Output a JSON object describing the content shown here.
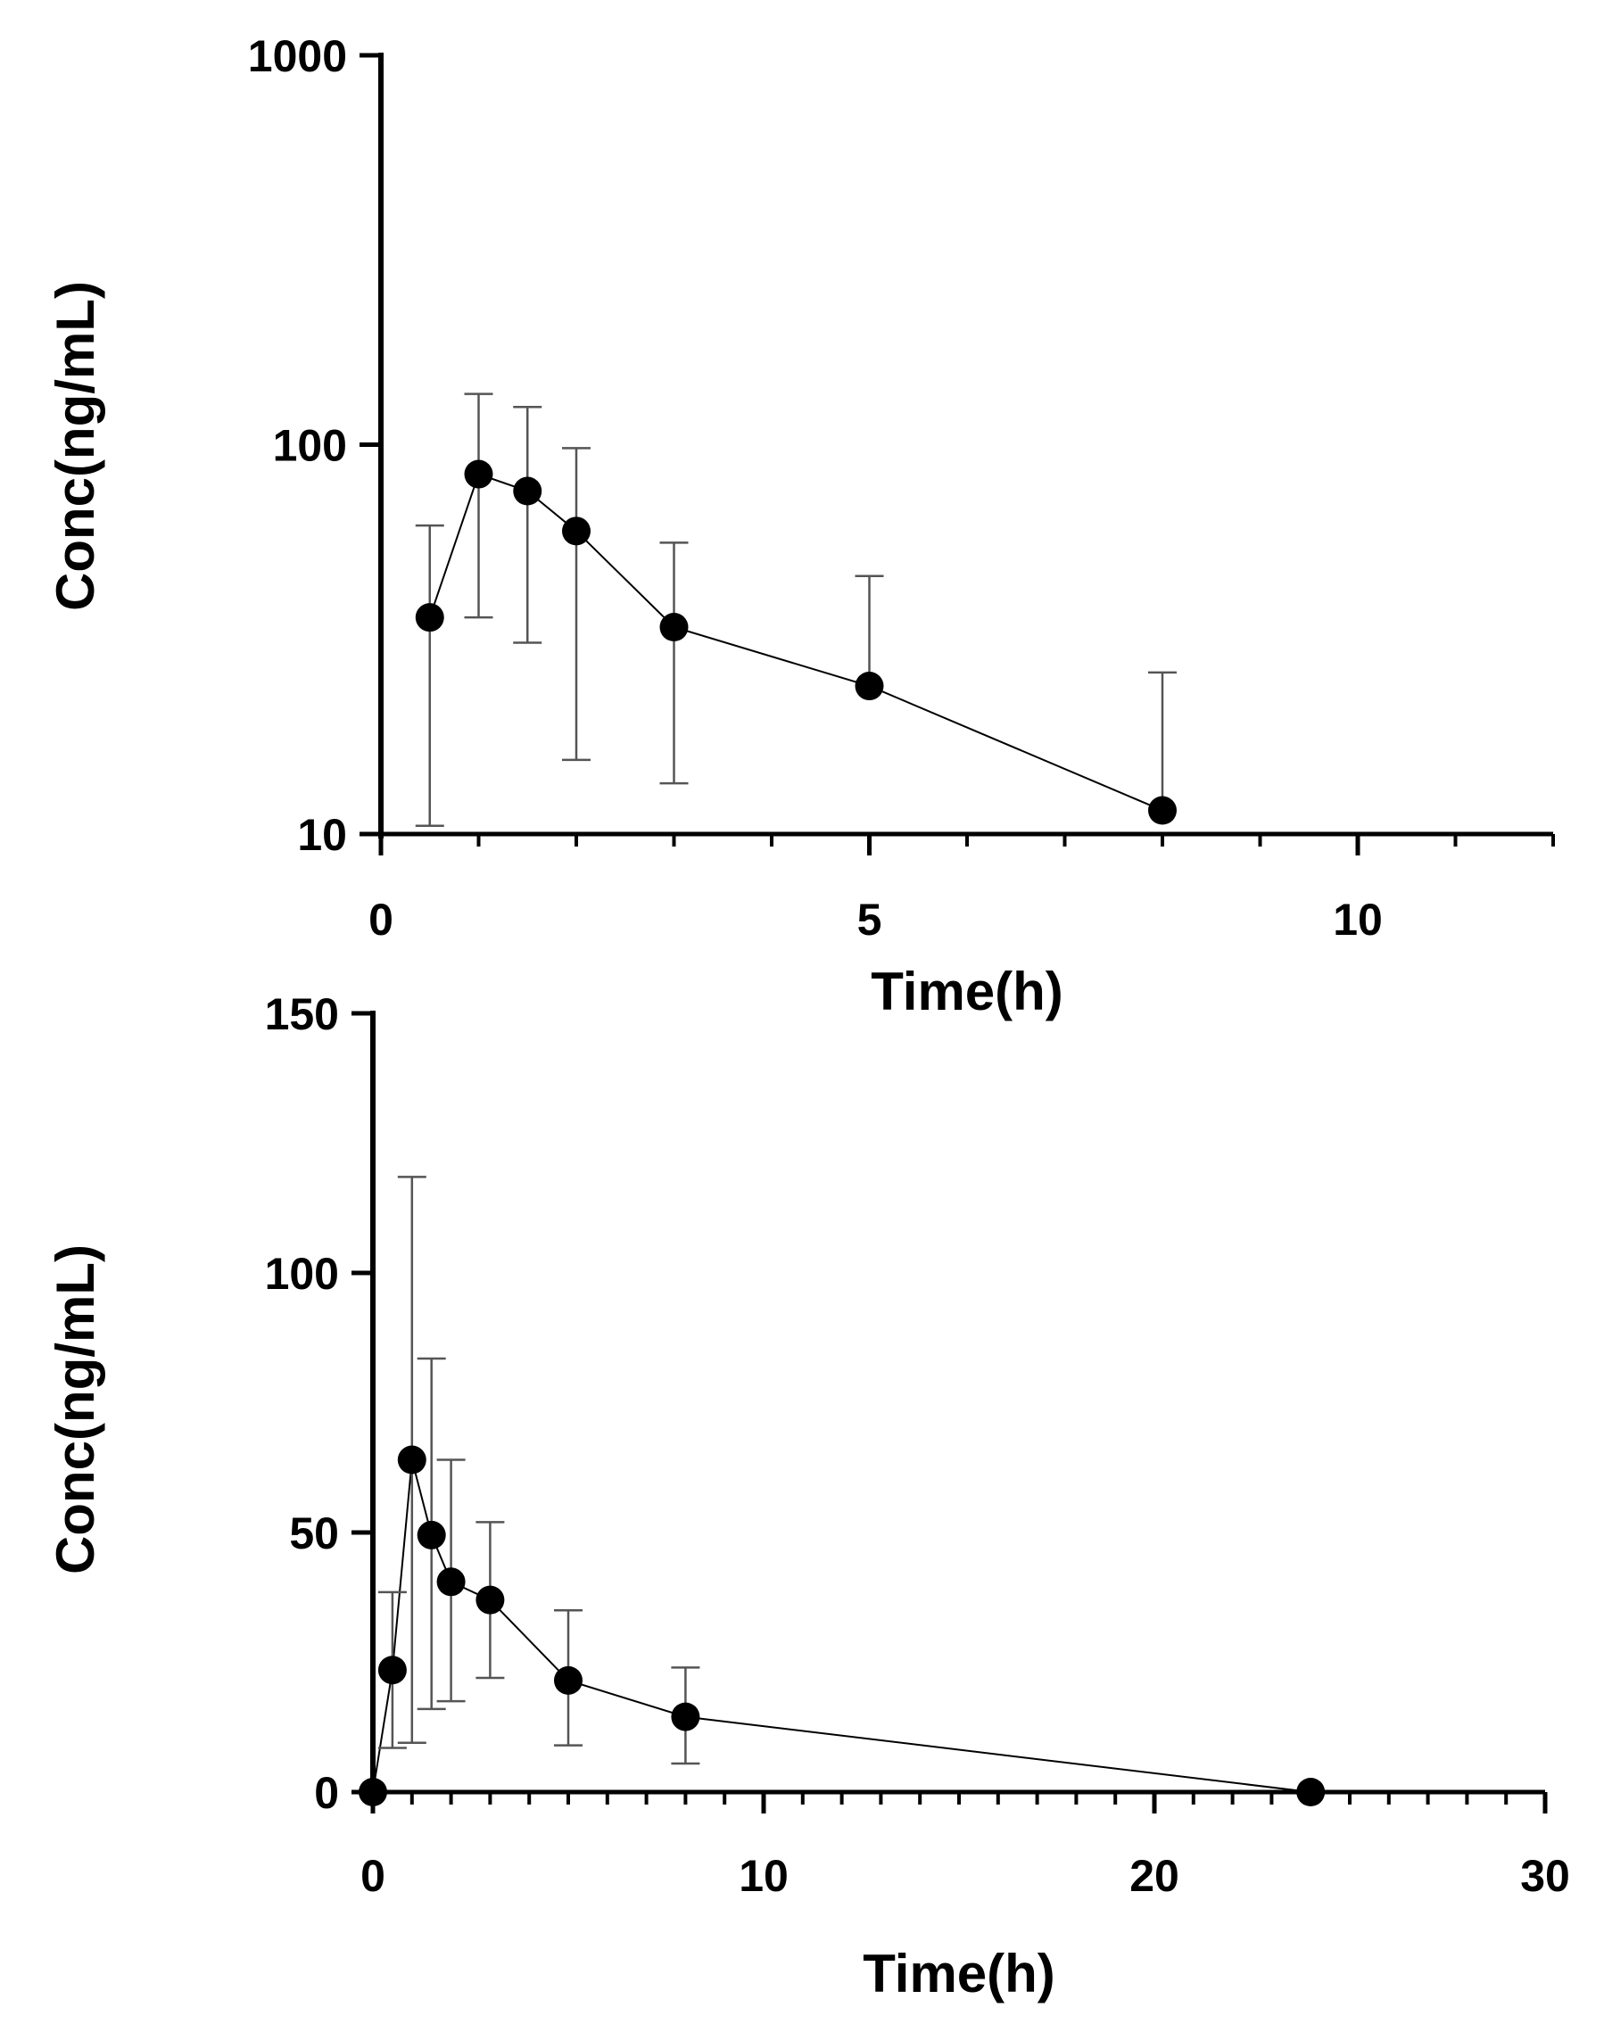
{
  "chart_data": [
    {
      "type": "line",
      "yscale": "log",
      "title": "",
      "xlabel": "Time(h)",
      "ylabel": "Conc(ng/mL)",
      "xlim": [
        0,
        12
      ],
      "ylim": [
        10,
        1000
      ],
      "xticks": [
        0,
        5,
        10
      ],
      "xtick_labels": [
        "0",
        "5",
        "10"
      ],
      "yticks": [
        10,
        100,
        1000
      ],
      "ytick_labels": [
        "10",
        "100",
        "1000"
      ],
      "grid": false,
      "legend": "none",
      "series": [
        {
          "name": "Conc",
          "x": [
            0.5,
            1,
            1.5,
            2,
            3,
            5,
            8
          ],
          "y": [
            36,
            84,
            76,
            60,
            34,
            24,
            11.5
          ],
          "err_low": [
            10.5,
            36,
            31,
            15.5,
            13.5,
            0,
            0
          ],
          "err_high": [
            62,
            135,
            125,
            98,
            56,
            46,
            26
          ]
        }
      ]
    },
    {
      "type": "line",
      "yscale": "linear",
      "title": "",
      "xlabel": "Time(h)",
      "ylabel": "Conc(ng/mL)",
      "xlim": [
        0,
        30
      ],
      "ylim": [
        0,
        150
      ],
      "xticks": [
        0,
        10,
        20,
        30
      ],
      "xtick_labels": [
        "0",
        "10",
        "20",
        "30"
      ],
      "yticks": [
        0,
        50,
        100,
        150
      ],
      "ytick_labels": [
        "0",
        "50",
        "100",
        "150"
      ],
      "grid": false,
      "legend": "none",
      "series": [
        {
          "name": "Conc",
          "x": [
            0,
            0.5,
            1,
            1.5,
            2,
            3,
            5,
            8,
            24
          ],
          "y": [
            0,
            23.5,
            64,
            49.5,
            40.5,
            37,
            21.5,
            14.5,
            0
          ],
          "err_low": [
            0,
            8.5,
            9.5,
            16,
            17.5,
            22,
            9,
            5.5,
            0
          ],
          "err_high": [
            0,
            38.5,
            118.5,
            83.5,
            64,
            52,
            35,
            24,
            0
          ]
        }
      ]
    }
  ]
}
